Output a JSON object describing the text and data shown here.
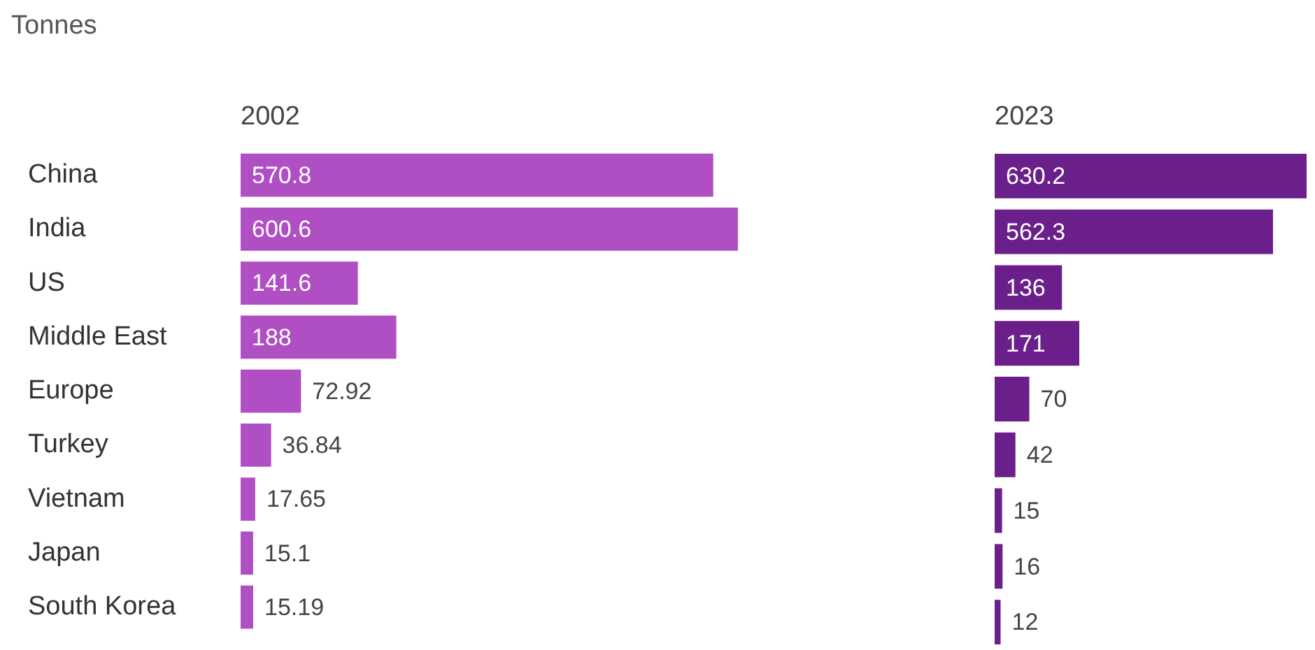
{
  "chart_data": [
    {
      "type": "bar",
      "orientation": "horizontal",
      "title": "2002",
      "annotations": [
        "Tonnes"
      ],
      "tick_labels": "y",
      "data_labels": true,
      "categories": [
        "China",
        "India",
        "US",
        "Middle East",
        "Europe",
        "Turkey",
        "Vietnam",
        "Japan",
        "South Korea"
      ],
      "series": [
        {
          "color": "#b04ec4",
          "values": [
            570.8,
            600.6,
            141.6,
            188,
            72.92,
            36.84,
            17.65,
            15.1,
            15.19
          ]
        }
      ]
    },
    {
      "type": "bar",
      "orientation": "horizontal",
      "title": "2023",
      "tick_labels": false,
      "data_labels": true,
      "categories": [
        null,
        null,
        null,
        null,
        null,
        null,
        null,
        null,
        null
      ],
      "series": [
        {
          "color": "#6a1f8a",
          "values": [
            630.2,
            562.3,
            136,
            171,
            70,
            42,
            15,
            16,
            12
          ]
        }
      ]
    }
  ]
}
